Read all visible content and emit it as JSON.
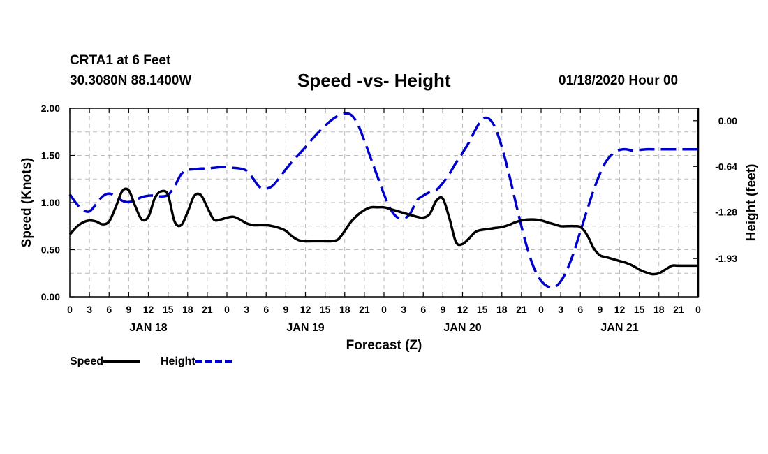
{
  "header": {
    "station": "CRTA1 at 6 Feet",
    "latlon": "30.3080N 88.1400W",
    "title": "Speed -vs- Height",
    "forecast_date": "01/18/2020 Hour 00"
  },
  "legend": {
    "speed_label": "Speed",
    "height_label": "Height"
  },
  "colors": {
    "speed": "#000000",
    "height": "#0000cc",
    "grid": "#bbbbbb"
  },
  "chart_data": {
    "type": "line",
    "title": "Speed -vs- Height",
    "xlabel": "Forecast (Z)",
    "ylabel_left": "Speed (Knots)",
    "ylabel_right": "Height (feet)",
    "x_range_hours": [
      0,
      96
    ],
    "x_tick_step_hours": 3,
    "x_tick_labels": [
      "0",
      "3",
      "6",
      "9",
      "12",
      "15",
      "18",
      "21",
      "0",
      "3",
      "6",
      "9",
      "12",
      "15",
      "18",
      "21",
      "0",
      "3",
      "6",
      "9",
      "12",
      "15",
      "18",
      "21",
      "0",
      "3",
      "6",
      "9",
      "12",
      "15",
      "18",
      "21",
      "0"
    ],
    "day_labels": [
      {
        "label": "JAN 18",
        "hour": 12
      },
      {
        "label": "JAN 19",
        "hour": 36
      },
      {
        "label": "JAN 20",
        "hour": 60
      },
      {
        "label": "JAN 21",
        "hour": 84
      }
    ],
    "ylim_left": [
      0,
      2
    ],
    "yticks_left": [
      0,
      0.5,
      1.0,
      1.5,
      2.0
    ],
    "ytick_labels_left": [
      "0.00",
      "0.50",
      "1.00",
      "1.50",
      "2.00"
    ],
    "ylim_right": [
      -2.466,
      0.174
    ],
    "yticks_right": [
      0.0,
      -0.64,
      -1.28,
      -1.93
    ],
    "ytick_labels_right": [
      "0.00",
      "-0.64",
      "-1.28",
      "-1.93"
    ],
    "grid": true,
    "legend_position": "bottom-left",
    "series": [
      {
        "name": "Speed",
        "axis": "left",
        "style": "solid",
        "x": [
          0,
          1,
          2,
          3,
          4,
          5,
          6,
          7,
          8,
          9,
          10,
          11,
          12,
          13,
          14,
          15,
          16,
          17,
          18,
          19,
          20,
          21,
          22,
          23,
          24,
          25,
          26,
          27,
          28,
          29,
          30,
          31,
          32,
          33,
          34,
          35,
          36,
          37,
          38,
          39,
          40,
          41,
          42,
          43,
          44,
          45,
          46,
          47,
          48,
          49,
          50,
          51,
          52,
          53,
          54,
          55,
          56,
          57,
          58,
          59,
          60,
          61,
          62,
          63,
          64,
          65,
          66,
          67,
          68,
          69,
          70,
          71,
          72,
          73,
          74,
          75,
          76,
          77,
          78,
          79,
          80,
          81,
          82,
          83,
          84,
          85,
          86,
          87,
          88,
          89,
          90,
          91,
          92,
          93,
          94,
          95,
          96
        ],
        "values": [
          0.66,
          0.74,
          0.79,
          0.81,
          0.8,
          0.77,
          0.8,
          0.95,
          1.12,
          1.13,
          0.96,
          0.82,
          0.85,
          1.05,
          1.12,
          1.08,
          0.8,
          0.76,
          0.9,
          1.07,
          1.08,
          0.95,
          0.82,
          0.82,
          0.84,
          0.85,
          0.82,
          0.78,
          0.76,
          0.76,
          0.76,
          0.75,
          0.73,
          0.7,
          0.64,
          0.6,
          0.59,
          0.59,
          0.59,
          0.59,
          0.59,
          0.61,
          0.7,
          0.8,
          0.87,
          0.92,
          0.95,
          0.95,
          0.95,
          0.93,
          0.91,
          0.89,
          0.87,
          0.85,
          0.84,
          0.88,
          1.02,
          1.04,
          0.83,
          0.58,
          0.56,
          0.62,
          0.69,
          0.71,
          0.72,
          0.73,
          0.74,
          0.76,
          0.79,
          0.81,
          0.82,
          0.82,
          0.81,
          0.79,
          0.77,
          0.75,
          0.75,
          0.75,
          0.74,
          0.66,
          0.52,
          0.44,
          0.42,
          0.4,
          0.38,
          0.36,
          0.33,
          0.29,
          0.26,
          0.24,
          0.25,
          0.29,
          0.33,
          0.33,
          0.33,
          0.33,
          0.33
        ]
      },
      {
        "name": "Height",
        "axis": "right",
        "style": "dashed",
        "x": [
          0,
          1,
          2,
          3,
          4,
          5,
          6,
          7,
          8,
          9,
          10,
          11,
          12,
          13,
          14,
          15,
          16,
          17,
          18,
          19,
          20,
          21,
          22,
          23,
          24,
          25,
          26,
          27,
          28,
          29,
          30,
          31,
          32,
          33,
          34,
          35,
          36,
          37,
          38,
          39,
          40,
          41,
          42,
          43,
          44,
          45,
          46,
          47,
          48,
          49,
          50,
          51,
          52,
          53,
          54,
          55,
          56,
          57,
          58,
          59,
          60,
          61,
          62,
          63,
          64,
          65,
          66,
          67,
          68,
          69,
          70,
          71,
          72,
          73,
          74,
          75,
          76,
          77,
          78,
          79,
          80,
          81,
          82,
          83,
          84,
          85,
          86,
          87,
          88,
          89,
          90,
          91,
          92,
          93,
          94,
          95,
          96
        ],
        "values": [
          -1.03,
          -1.16,
          -1.25,
          -1.27,
          -1.17,
          -1.06,
          -1.02,
          -1.06,
          -1.12,
          -1.14,
          -1.11,
          -1.07,
          -1.05,
          -1.05,
          -1.06,
          -1.04,
          -0.92,
          -0.75,
          -0.69,
          -0.68,
          -0.67,
          -0.67,
          -0.66,
          -0.65,
          -0.65,
          -0.66,
          -0.67,
          -0.7,
          -0.81,
          -0.93,
          -0.95,
          -0.91,
          -0.8,
          -0.68,
          -0.57,
          -0.47,
          -0.37,
          -0.26,
          -0.16,
          -0.07,
          0.01,
          0.07,
          0.1,
          0.08,
          -0.05,
          -0.28,
          -0.53,
          -0.78,
          -1.03,
          -1.24,
          -1.35,
          -1.37,
          -1.3,
          -1.12,
          -1.05,
          -1.0,
          -0.97,
          -0.87,
          -0.74,
          -0.59,
          -0.45,
          -0.3,
          -0.12,
          0.02,
          0.03,
          -0.1,
          -0.37,
          -0.71,
          -1.1,
          -1.48,
          -1.82,
          -2.08,
          -2.24,
          -2.32,
          -2.33,
          -2.25,
          -2.08,
          -1.84,
          -1.55,
          -1.26,
          -0.98,
          -0.74,
          -0.56,
          -0.46,
          -0.41,
          -0.4,
          -0.42,
          -0.41,
          -0.4,
          -0.4,
          -0.4,
          -0.4,
          -0.4,
          -0.4,
          -0.4,
          -0.4,
          -0.4
        ]
      }
    ]
  }
}
